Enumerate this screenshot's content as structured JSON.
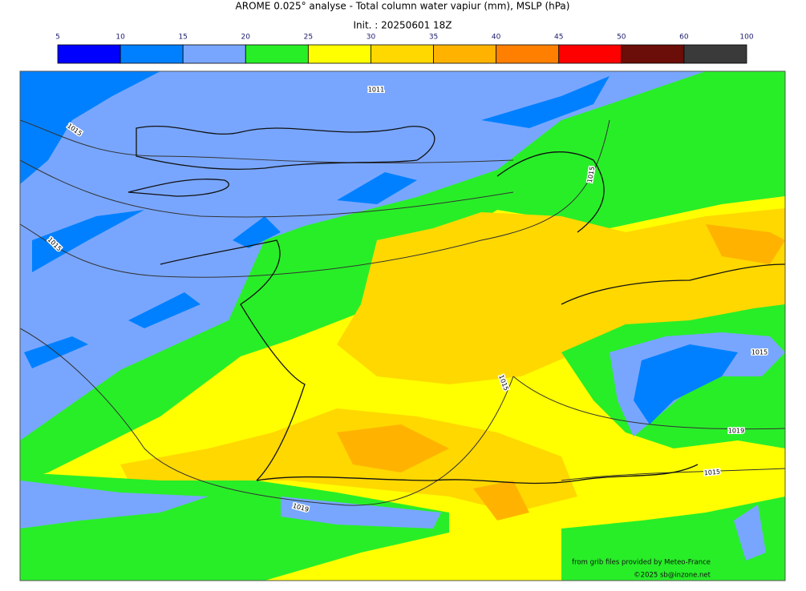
{
  "header": {
    "title": "AROME 0.025° analyse - Total column water vapiur (mm), MSLP (hPa)",
    "subtitle": "Init. : 20250601 18Z"
  },
  "colorbar": {
    "ticks": [
      5,
      10,
      15,
      20,
      25,
      30,
      35,
      40,
      45,
      50,
      60,
      100
    ],
    "colors": [
      "#0000ff",
      "#0080ff",
      "#78a6ff",
      "#28ee28",
      "#ffff00",
      "#ffd800",
      "#ffb300",
      "#ff8000",
      "#ff0000",
      "#6b0d08",
      "#3a3a3a"
    ]
  },
  "contour_labels": [
    "1011",
    "1015",
    "1015",
    "1015",
    "1015",
    "1015",
    "1019",
    "1019",
    "1015"
  ],
  "credits": [
    "from grib files provided by Meteo-France",
    "©2025 sb@inzone.net"
  ]
}
